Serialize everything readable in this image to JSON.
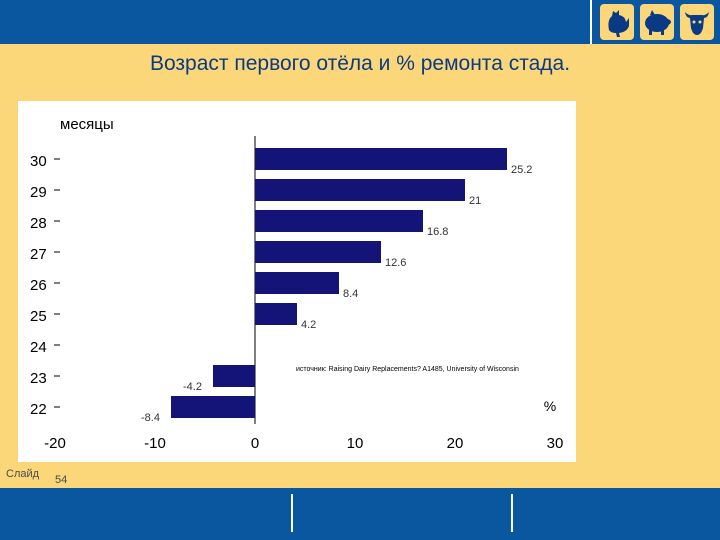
{
  "slide": {
    "title": "Возраст первого отёла и % ремонта стада.",
    "label": "Слайд",
    "number": "54"
  },
  "icons": [
    "rooster-icon",
    "pig-icon",
    "cow-icon"
  ],
  "colors": {
    "background": "#fbd77a",
    "band": "#0a57a0",
    "bar": "#141478",
    "title": "#0a3a86"
  },
  "chart_data": {
    "type": "bar",
    "orientation": "horizontal",
    "title": "",
    "ylabel": "месяцы",
    "xlabel": "%",
    "categories": [
      "30",
      "29",
      "28",
      "27",
      "26",
      "25",
      "24",
      "23",
      "22"
    ],
    "values": [
      25.2,
      21,
      16.8,
      12.6,
      8.4,
      4.2,
      0,
      -4.2,
      -8.4
    ],
    "value_labels": [
      "25.2",
      "21",
      "16.8",
      "12.6",
      "8.4",
      "4.2",
      "",
      "-4.2",
      "-8.4"
    ],
    "xticks": [
      "-20",
      "-10",
      "0",
      "10",
      "20",
      "30"
    ],
    "xlim": [
      -20,
      30
    ],
    "grid": false,
    "source": "источник: Raising Dairy Replacements? A1485, University of Wisconsin"
  }
}
